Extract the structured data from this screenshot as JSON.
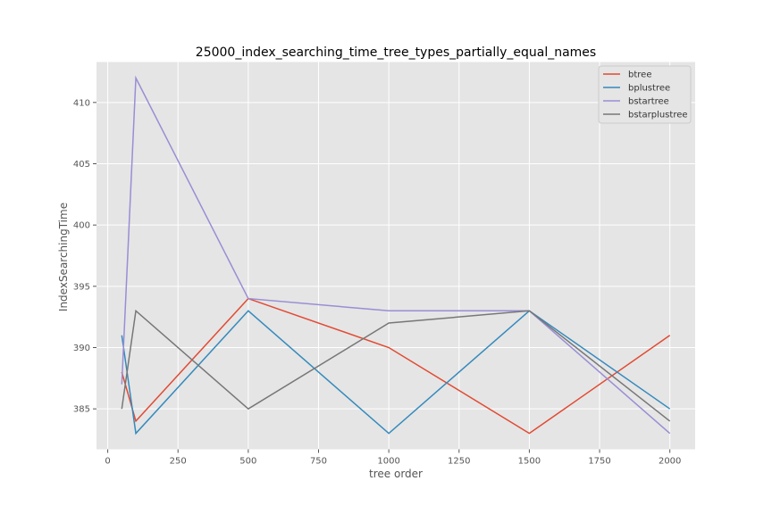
{
  "chart_data": {
    "type": "line",
    "title": "25000_index_searching_time_tree_types_partially_equal_names",
    "xlabel": "tree order",
    "ylabel": "IndexSearchingTime",
    "x": [
      50,
      100,
      500,
      1000,
      1500,
      2000
    ],
    "xlim": [
      -40,
      2090
    ],
    "ylim": [
      381.7,
      413.3
    ],
    "xticks": [
      0,
      250,
      500,
      750,
      1000,
      1250,
      1500,
      1750,
      2000
    ],
    "yticks": [
      385,
      390,
      395,
      400,
      405,
      410
    ],
    "grid": true,
    "legend_position": "top-right",
    "series": [
      {
        "name": "btree",
        "color": "#E24A33",
        "values": [
          388,
          384,
          394,
          390,
          383,
          391
        ]
      },
      {
        "name": "bplustree",
        "color": "#348ABD",
        "values": [
          391,
          383,
          393,
          383,
          393,
          385
        ]
      },
      {
        "name": "bstartree",
        "color": "#988ED5",
        "values": [
          387,
          412,
          394,
          393,
          393,
          383
        ]
      },
      {
        "name": "bstarplustree",
        "color": "#777777",
        "values": [
          385,
          393,
          385,
          392,
          393,
          384
        ]
      }
    ]
  }
}
